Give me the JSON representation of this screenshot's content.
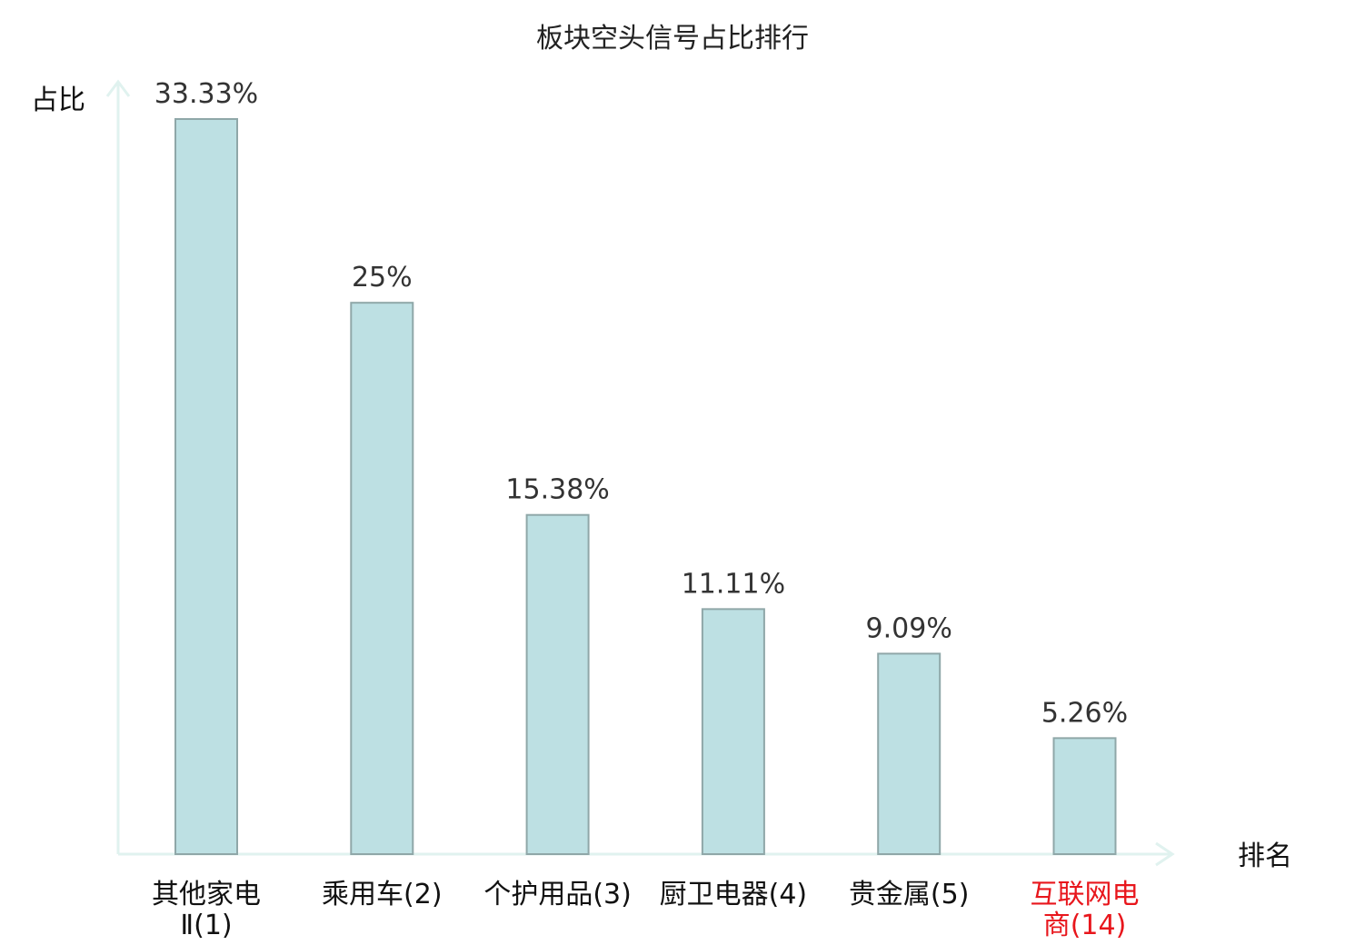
{
  "chart_data": {
    "type": "bar",
    "title": "板块空头信号占比排行",
    "ylabel": "占比",
    "xlabel": "排名",
    "ylim": [
      0,
      35
    ],
    "grid": false,
    "categories": [
      {
        "lines": [
          "其他家电",
          "Ⅱ(1)"
        ],
        "highlight": false
      },
      {
        "lines": [
          "乘用车(2)"
        ],
        "highlight": false
      },
      {
        "lines": [
          "个护用品(3)"
        ],
        "highlight": false
      },
      {
        "lines": [
          "厨卫电器(4)"
        ],
        "highlight": false
      },
      {
        "lines": [
          "贵金属(5)"
        ],
        "highlight": false
      },
      {
        "lines": [
          "互联网电",
          "商(14)"
        ],
        "highlight": true
      }
    ],
    "values": [
      33.33,
      25,
      15.38,
      11.11,
      9.09,
      5.26
    ],
    "value_labels": [
      "33.33%",
      "25%",
      "15.38%",
      "11.11%",
      "9.09%",
      "5.26%"
    ],
    "colors": {
      "bar_fill": "#bde0e3",
      "bar_stroke": "#8fa7a8",
      "axis": "#e0f2ef",
      "highlight_text": "#e8161c"
    }
  }
}
